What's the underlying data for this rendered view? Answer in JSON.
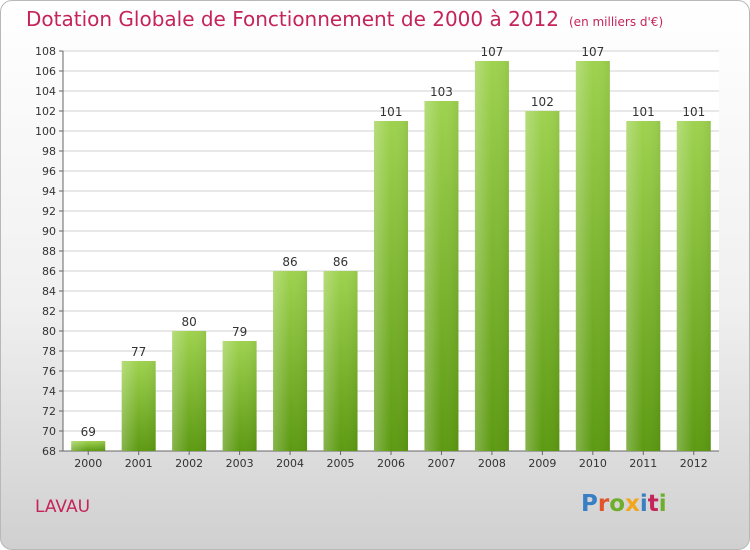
{
  "header": {
    "title": "Dotation Globale de Fonctionnement de 2000 à 2012",
    "unit": "(en milliers d'€)"
  },
  "footer": {
    "city": "LAVAU",
    "logo": "Proxiti",
    "logo_colors": [
      "#3a7fc4",
      "#e2552b",
      "#6fae2c",
      "#f2a61e",
      "#3a7fc4",
      "#c4245a",
      "#6fae2c"
    ]
  },
  "colors": {
    "title": "#c4245a",
    "bar_light": "#9ed24f",
    "bar_dark": "#5d9a12",
    "grid": "#d2d2d2"
  },
  "chart_data": {
    "type": "bar",
    "categories": [
      "2000",
      "2001",
      "2002",
      "2003",
      "2004",
      "2005",
      "2006",
      "2007",
      "2008",
      "2009",
      "2010",
      "2011",
      "2012"
    ],
    "values": [
      69,
      77,
      80,
      79,
      86,
      86,
      101,
      103,
      107,
      102,
      107,
      101,
      101
    ],
    "value_labels": [
      "69",
      "77",
      "80",
      "79",
      "86",
      "86",
      "101",
      "103",
      "107",
      "102",
      "107",
      "101",
      "101"
    ],
    "ylim": [
      68,
      108
    ],
    "yticks": [
      "68",
      "70",
      "72",
      "74",
      "76",
      "78",
      "80",
      "82",
      "84",
      "86",
      "88",
      "90",
      "92",
      "94",
      "96",
      "98",
      "100",
      "102",
      "104",
      "106",
      "108"
    ],
    "grid": true,
    "legend": "none"
  }
}
